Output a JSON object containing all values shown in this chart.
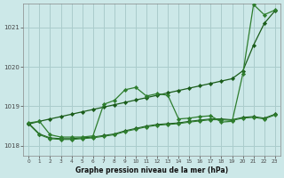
{
  "background_color": "#cce8e8",
  "grid_color": "#aacccc",
  "line_color_dark": "#1a5c1a",
  "line_color_medium": "#2e7d2e",
  "xlabel": "Graphe pression niveau de la mer (hPa)",
  "ylim": [
    1017.75,
    1021.6
  ],
  "xlim": [
    -0.5,
    23.5
  ],
  "yticks": [
    1018,
    1019,
    1020,
    1021
  ],
  "xticks": [
    0,
    1,
    2,
    3,
    4,
    5,
    6,
    7,
    8,
    9,
    10,
    11,
    12,
    13,
    14,
    15,
    16,
    17,
    18,
    19,
    20,
    21,
    22,
    23
  ],
  "line_straight": [
    1018.55,
    1018.62,
    1018.68,
    1018.74,
    1018.8,
    1018.86,
    1018.92,
    1018.98,
    1019.04,
    1019.1,
    1019.16,
    1019.22,
    1019.28,
    1019.34,
    1019.4,
    1019.46,
    1019.52,
    1019.58,
    1019.64,
    1019.7,
    1019.9,
    1020.55,
    1021.1,
    1021.42
  ],
  "line_wavy": [
    1018.58,
    1018.62,
    1018.28,
    1018.22,
    1018.22,
    1018.22,
    1018.25,
    1019.05,
    1019.15,
    1019.42,
    1019.48,
    1019.26,
    1019.32,
    1019.28,
    1018.68,
    1018.7,
    1018.74,
    1018.76,
    1018.6,
    1018.62,
    1019.82,
    1021.58,
    1021.32,
    1021.44
  ],
  "line_flat1": [
    1018.57,
    1018.3,
    1018.2,
    1018.18,
    1018.18,
    1018.2,
    1018.22,
    1018.26,
    1018.3,
    1018.38,
    1018.44,
    1018.5,
    1018.54,
    1018.56,
    1018.58,
    1018.62,
    1018.65,
    1018.68,
    1018.68,
    1018.66,
    1018.72,
    1018.74,
    1018.7,
    1018.8
  ],
  "line_flat2": [
    1018.55,
    1018.28,
    1018.18,
    1018.16,
    1018.16,
    1018.18,
    1018.2,
    1018.24,
    1018.28,
    1018.36,
    1018.42,
    1018.48,
    1018.52,
    1018.54,
    1018.56,
    1018.6,
    1018.63,
    1018.66,
    1018.66,
    1018.64,
    1018.7,
    1018.72,
    1018.68,
    1018.78
  ]
}
